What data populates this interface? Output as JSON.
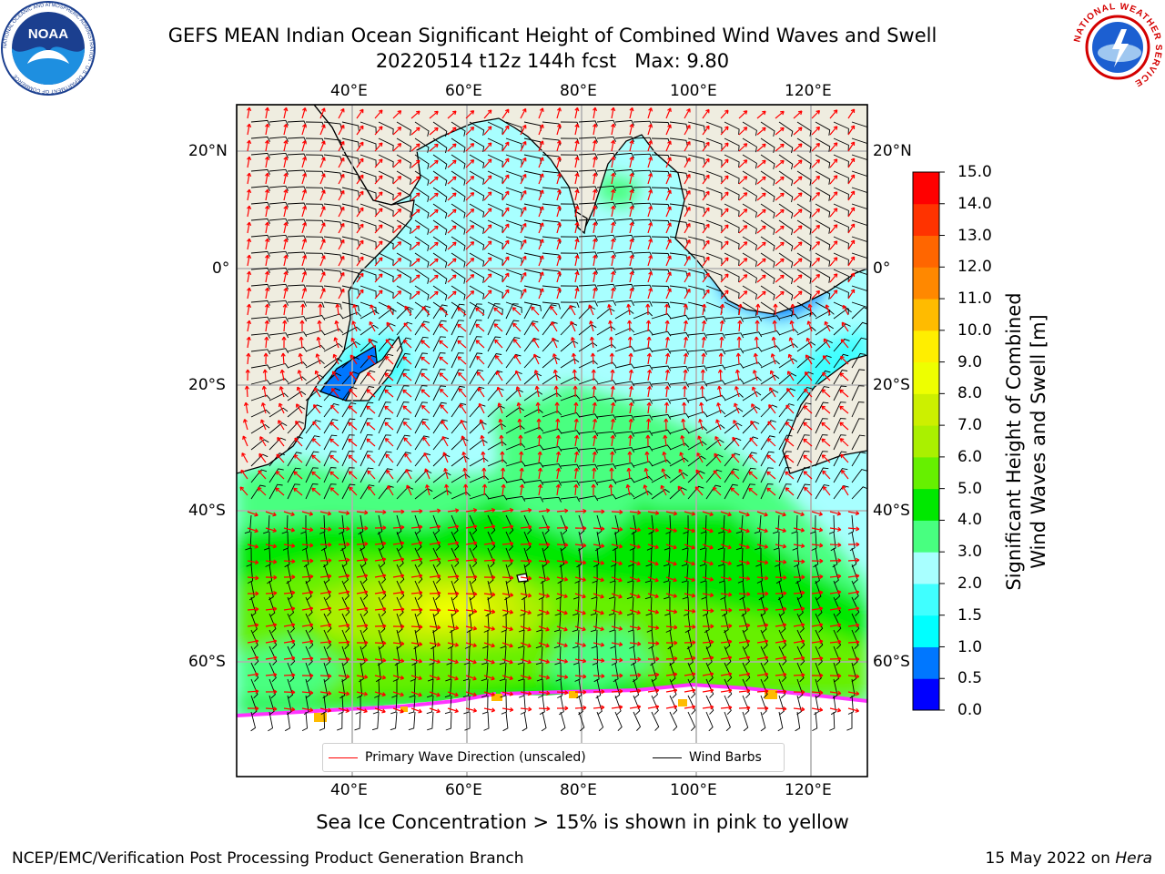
{
  "header": {
    "title_line1": "GEFS MEAN Indian Ocean Significant Height of Combined Wind Waves and Swell",
    "title_line2": "20220514 t12z 144h fcst   Max: 9.80",
    "noaa_logo_text": "NOAA",
    "noaa_ring_text": "NATIONAL OCEANIC AND ATMOSPHERIC ADMINISTRATION · U.S. DEPARTMENT OF COMMERCE",
    "nws_ring_text": "NATIONAL WEATHER SERVICE"
  },
  "map": {
    "lon_ticks": [
      "40°E",
      "60°E",
      "80°E",
      "100°E",
      "120°E"
    ],
    "lat_ticks": [
      "20°N",
      "0°",
      "20°S",
      "40°S",
      "60°S"
    ],
    "colors": {
      "land": "#efede0",
      "ice": "#ffffff",
      "frame": "#000000",
      "grid": "#b0b0b0",
      "wave_arrow": "#ff0000",
      "barb": "#000000"
    }
  },
  "legend": {
    "wave_label": "Primary Wave Direction (unscaled)",
    "barb_label": "Wind Barbs"
  },
  "colorbar": {
    "label_line1": "Significant Height of Combined",
    "label_line2": "Wind Waves and Swell [m]",
    "ticks": [
      "0.0",
      "0.5",
      "1.0",
      "1.5",
      "2.0",
      "3.0",
      "4.0",
      "5.0",
      "6.0",
      "7.0",
      "8.0",
      "9.0",
      "10.0",
      "11.0",
      "12.0",
      "13.0",
      "14.0",
      "15.0"
    ],
    "colors": [
      "#0000ff",
      "#0077ff",
      "#00ffff",
      "#40ffff",
      "#a8ffff",
      "#48ff80",
      "#00e800",
      "#66f000",
      "#aaf000",
      "#ccf000",
      "#eeff00",
      "#ffee00",
      "#ffbb00",
      "#ff8800",
      "#ff6600",
      "#ff3300",
      "#ff0000"
    ]
  },
  "caption": "Sea Ice Concentration > 15% is shown in pink to yellow",
  "footer": {
    "left": "NCEP/EMC/Verification Post Processing Product Generation Branch",
    "right_date": "15 May 2022 on ",
    "right_host": "Hera"
  }
}
